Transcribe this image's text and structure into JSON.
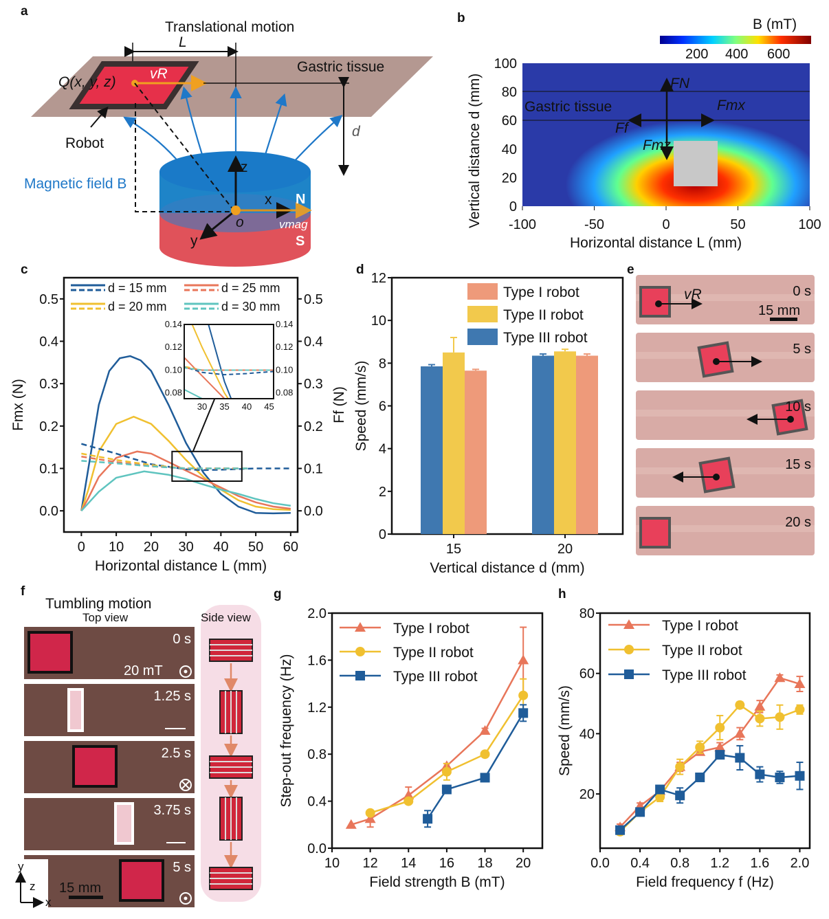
{
  "panel_labels": {
    "a": "a",
    "b": "b",
    "c": "c",
    "d": "d",
    "e": "e",
    "f": "f",
    "g": "g",
    "h": "h"
  },
  "panel_a": {
    "title": "Translational motion",
    "L": "L",
    "tissue": "Gastric tissue",
    "Q": "Q(x, y, z)",
    "vR": "vR",
    "robot": "Robot",
    "d": "d",
    "field": "Magnetic field B",
    "z": "z",
    "x": "x",
    "y": "y",
    "o": "o",
    "N": "N",
    "S": "S",
    "vmag": "vmag"
  },
  "panel_b": {
    "colorbar_title": "B (mT)",
    "colorbar_ticks": [
      "200",
      "400",
      "600"
    ],
    "xlabel": "Horizontal distance L (mm)",
    "ylabel": "Vertical distance d (mm)",
    "xticks": [
      "-100",
      "-50",
      "0",
      "50",
      "100"
    ],
    "yticks": [
      "0",
      "20",
      "40",
      "60",
      "80",
      "100"
    ],
    "tissue": "Gastric tissue",
    "FN": "FN",
    "Fmx": "Fmx",
    "Ff": "Ff",
    "Fmz": "Fmz"
  },
  "panel_e": {
    "times": [
      "0 s",
      "5 s",
      "10 s",
      "15 s",
      "20 s"
    ],
    "scale": "15 mm",
    "vR": "vR"
  },
  "panel_f": {
    "title": "Tumbling motion",
    "top_view": "Top view",
    "side_view": "Side view",
    "times": [
      "0 s",
      "1.25 s",
      "2.5 s",
      "3.75 s",
      "5 s"
    ],
    "field": "20 mT",
    "scale": "15 mm",
    "axes": {
      "y": "y",
      "z": "z",
      "x": "x"
    }
  },
  "colors": {
    "blue": "#1f5c99",
    "yellow": "#f0c030",
    "orange": "#e8765a",
    "teal": "#5fc4bf",
    "bar_orange": "#ee9a7a",
    "bar_yellow": "#f2c94c",
    "bar_blue": "#3f78b0"
  },
  "chart_data": [
    {
      "id": "c",
      "type": "line",
      "xlabel": "Horizontal distance L (mm)",
      "ylabel": "Fmx (N)",
      "y2label": "Ff (N)",
      "xlim": [
        -5,
        62
      ],
      "ylim": [
        -0.05,
        0.55
      ],
      "xticks": [
        0,
        10,
        20,
        30,
        40,
        50,
        60
      ],
      "yticks": [
        0.0,
        0.1,
        0.2,
        0.3,
        0.4,
        0.5
      ],
      "legend": [
        "d = 15 mm",
        "d = 20 mm",
        "d = 25 mm",
        "d = 30 mm"
      ],
      "series": [
        {
          "name": "d = 15 mm",
          "color": "#1f5c99",
          "style": "solid",
          "x": [
            0,
            2,
            5,
            8,
            11,
            14,
            17,
            20,
            25,
            30,
            35,
            40,
            45,
            50,
            55,
            60
          ],
          "y": [
            0,
            0.1,
            0.25,
            0.33,
            0.36,
            0.365,
            0.355,
            0.33,
            0.25,
            0.16,
            0.09,
            0.04,
            0.01,
            -0.005,
            -0.006,
            -0.005
          ]
        },
        {
          "name": "d = 20 mm",
          "color": "#f0c030",
          "style": "solid",
          "x": [
            0,
            2,
            5,
            10,
            15,
            20,
            25,
            30,
            35,
            40,
            45,
            50,
            55,
            60
          ],
          "y": [
            0,
            0.05,
            0.14,
            0.205,
            0.222,
            0.205,
            0.165,
            0.12,
            0.08,
            0.05,
            0.025,
            0.01,
            0.004,
            0.002
          ]
        },
        {
          "name": "d = 25 mm",
          "color": "#e8765a",
          "style": "solid",
          "x": [
            0,
            2,
            5,
            10,
            16,
            20,
            25,
            30,
            35,
            40,
            45,
            50,
            55,
            60
          ],
          "y": [
            0,
            0.03,
            0.08,
            0.125,
            0.14,
            0.135,
            0.115,
            0.095,
            0.075,
            0.055,
            0.035,
            0.02,
            0.01,
            0.005
          ]
        },
        {
          "name": "d = 30 mm",
          "color": "#5fc4bf",
          "style": "solid",
          "x": [
            0,
            2,
            5,
            10,
            18,
            25,
            30,
            35,
            40,
            45,
            50,
            55,
            60
          ],
          "y": [
            0,
            0.018,
            0.045,
            0.078,
            0.093,
            0.085,
            0.075,
            0.062,
            0.05,
            0.04,
            0.028,
            0.018,
            0.012
          ]
        },
        {
          "name": "d = 15 mm",
          "color": "#1f5c99",
          "style": "dashed",
          "x": [
            0,
            10,
            20,
            30,
            35,
            40,
            50,
            60
          ],
          "y": [
            0.158,
            0.135,
            0.11,
            0.098,
            0.096,
            0.097,
            0.1,
            0.1
          ]
        },
        {
          "name": "d = 20 mm",
          "color": "#f0c030",
          "style": "dashed",
          "x": [
            0,
            10,
            20,
            30,
            40,
            48
          ],
          "y": [
            0.135,
            0.12,
            0.108,
            0.1,
            0.1,
            0.1
          ]
        },
        {
          "name": "d = 25 mm",
          "color": "#e8765a",
          "style": "dashed",
          "x": [
            0,
            10,
            20,
            30,
            40,
            48
          ],
          "y": [
            0.128,
            0.115,
            0.105,
            0.1,
            0.1,
            0.1
          ]
        },
        {
          "name": "d = 30 mm",
          "color": "#5fc4bf",
          "style": "dashed",
          "x": [
            0,
            10,
            20,
            30,
            40,
            48
          ],
          "y": [
            0.118,
            0.112,
            0.105,
            0.1,
            0.1,
            0.1
          ]
        }
      ],
      "inset": {
        "xlim": [
          26,
          46
        ],
        "ylim": [
          0.075,
          0.14
        ],
        "xticks": [
          30,
          35,
          40,
          45
        ],
        "yticks": [
          0.08,
          0.1,
          0.12,
          0.14
        ]
      }
    },
    {
      "id": "d",
      "type": "bar",
      "xlabel": "Vertical distance d (mm)",
      "ylabel": "Speed (mm/s)",
      "categories": [
        "15",
        "20"
      ],
      "ylim": [
        0,
        12
      ],
      "yticks": [
        0,
        2,
        4,
        6,
        8,
        10,
        12
      ],
      "legend_position": "top-right",
      "series": [
        {
          "name": "Type III  robot",
          "color": "#3f78b0",
          "values": [
            7.85,
            8.35
          ],
          "errors": [
            0.08,
            0.08
          ]
        },
        {
          "name": "Type II  robot",
          "color": "#f2c94c",
          "values": [
            8.5,
            8.55
          ],
          "errors": [
            0.7,
            0.1
          ]
        },
        {
          "name": "Type I robot",
          "color": "#ee9a7a",
          "values": [
            7.65,
            8.35
          ],
          "errors": [
            0.06,
            0.08
          ]
        }
      ],
      "legend_order": [
        "Type I robot",
        "Type II  robot",
        "Type III  robot"
      ]
    },
    {
      "id": "g",
      "type": "line",
      "xlabel": "Field strength B (mT)",
      "ylabel": "Step-out frequency (Hz)",
      "xlim": [
        10,
        21
      ],
      "ylim": [
        0,
        2.0
      ],
      "xticks": [
        10,
        12,
        14,
        16,
        18,
        20
      ],
      "yticks": [
        0.0,
        0.4,
        0.8,
        1.2,
        1.6,
        2.0
      ],
      "legend_position": "top-left",
      "series": [
        {
          "name": "Type I robot",
          "color": "#e8765a",
          "marker": "triangle",
          "x": [
            11,
            12,
            14,
            16,
            18,
            20
          ],
          "y": [
            0.2,
            0.25,
            0.45,
            0.7,
            1.0,
            1.6
          ],
          "errors": [
            0,
            0.07,
            0.07,
            0.02,
            0.02,
            0.28
          ]
        },
        {
          "name": "Type II  robot",
          "color": "#f0c030",
          "marker": "circle",
          "x": [
            12,
            14,
            16,
            18,
            20
          ],
          "y": [
            0.3,
            0.4,
            0.65,
            0.8,
            1.3
          ],
          "errors": [
            0.02,
            0.02,
            0.07,
            0.02,
            0.14
          ]
        },
        {
          "name": "Type III  robot",
          "color": "#1f5c99",
          "marker": "square",
          "x": [
            15,
            16,
            18,
            20
          ],
          "y": [
            0.25,
            0.5,
            0.6,
            1.15
          ],
          "errors": [
            0.07,
            0.02,
            0.02,
            0.07
          ]
        }
      ]
    },
    {
      "id": "h",
      "type": "line",
      "xlabel": "Field frequency f (Hz)",
      "ylabel": "Speed (mm/s)",
      "xlim": [
        0,
        2.1
      ],
      "ylim": [
        2,
        80
      ],
      "xticks": [
        0.0,
        0.4,
        0.8,
        1.2,
        1.6,
        2.0
      ],
      "yticks": [
        20,
        40,
        60,
        80
      ],
      "legend_position": "top-left",
      "series": [
        {
          "name": "Type I robot",
          "color": "#e8765a",
          "marker": "triangle",
          "x": [
            0.2,
            0.4,
            0.6,
            0.8,
            1.0,
            1.2,
            1.4,
            1.6,
            1.8,
            2.0
          ],
          "y": [
            9,
            16,
            21,
            29,
            34,
            35.5,
            40,
            49,
            58.5,
            56.5
          ],
          "errors": [
            1,
            1,
            1,
            1.5,
            1,
            1.5,
            2,
            2,
            1,
            2.5
          ]
        },
        {
          "name": "Type II  robot",
          "color": "#f0c030",
          "marker": "circle",
          "x": [
            0.2,
            0.4,
            0.6,
            0.8,
            1.0,
            1.2,
            1.4,
            1.6,
            1.8,
            2.0
          ],
          "y": [
            7.5,
            14,
            19,
            29,
            35.5,
            42,
            49.5,
            45,
            45.5,
            48
          ],
          "errors": [
            1,
            1,
            1.5,
            2.5,
            2,
            4,
            1,
            2.5,
            4,
            1.5
          ]
        },
        {
          "name": "Type III  robot",
          "color": "#1f5c99",
          "marker": "square",
          "x": [
            0.2,
            0.4,
            0.6,
            0.8,
            1.0,
            1.2,
            1.4,
            1.6,
            1.8,
            2.0
          ],
          "y": [
            8,
            14,
            21.5,
            19.5,
            25.5,
            33,
            32,
            26.5,
            25.5,
            26
          ],
          "errors": [
            1,
            1,
            1,
            2.5,
            1,
            1,
            4,
            2.5,
            2,
            4.5
          ]
        }
      ]
    }
  ]
}
